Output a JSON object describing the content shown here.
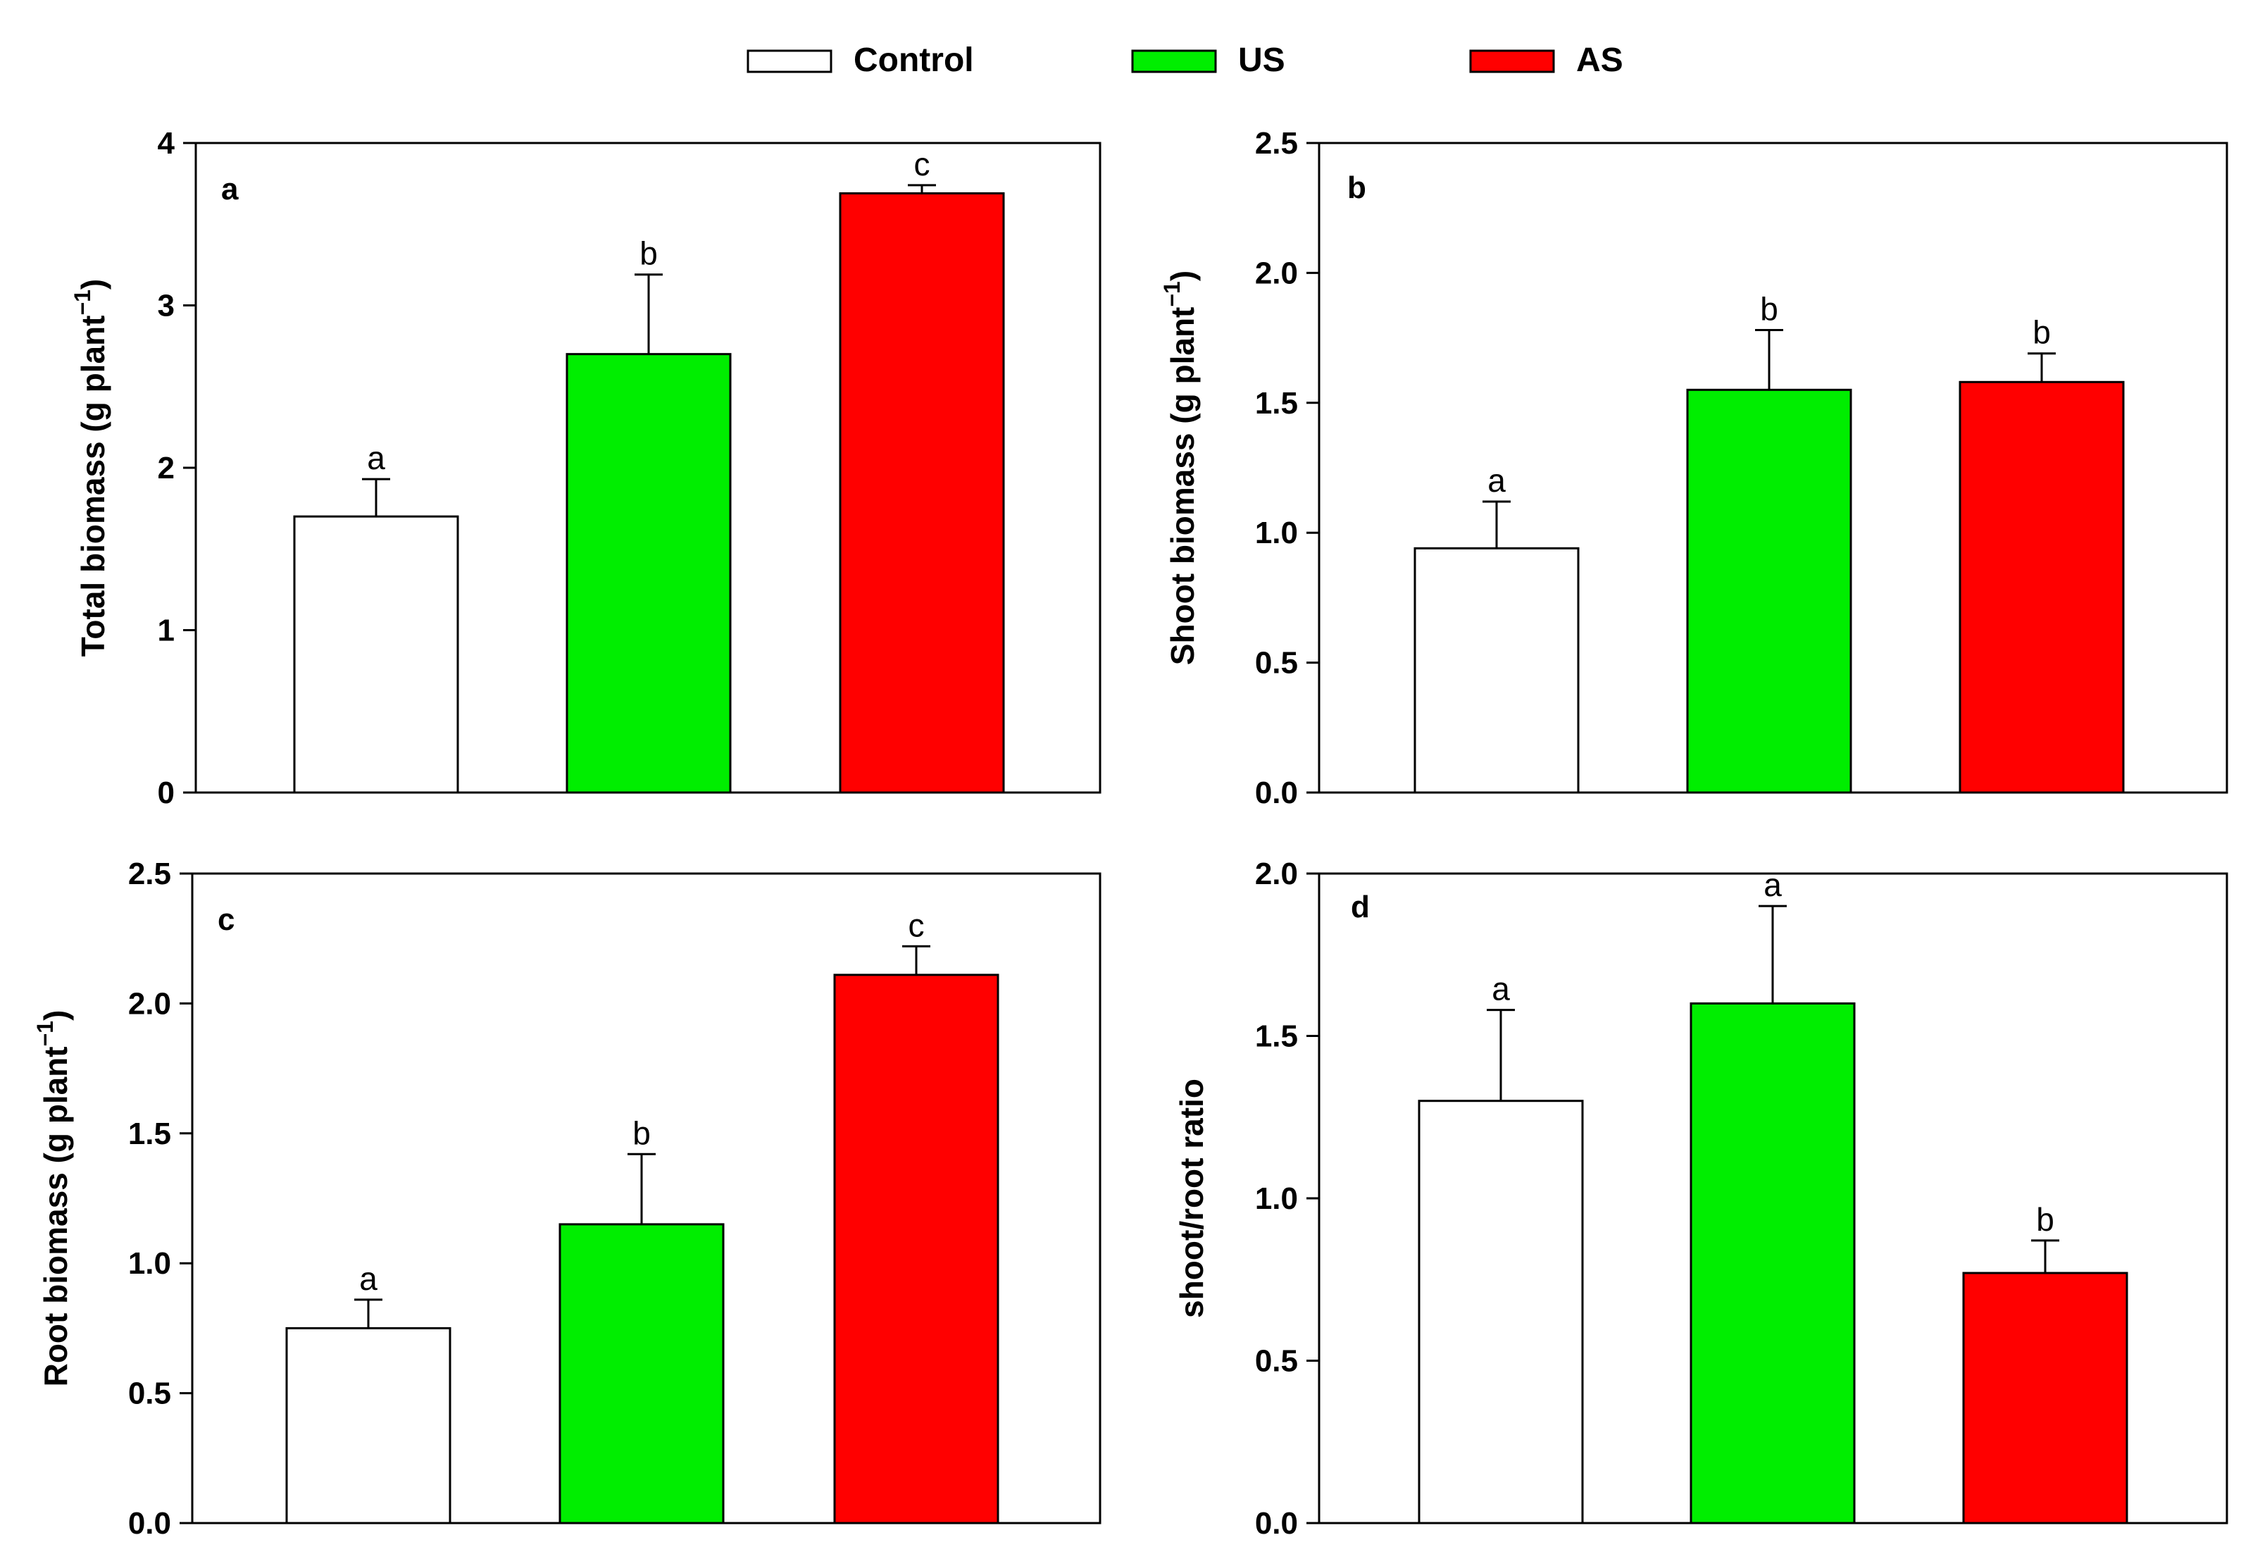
{
  "legend": [
    {
      "label": "Control",
      "color": "#ffffff"
    },
    {
      "label": "US",
      "color": "#00ee00"
    },
    {
      "label": "AS",
      "color": "#ff0000"
    }
  ],
  "chart_data": [
    {
      "type": "bar",
      "panel": "a",
      "categories": [
        "Control",
        "US",
        "AS"
      ],
      "series": [
        {
          "name": "Total biomass",
          "values": [
            1.7,
            2.7,
            3.69
          ],
          "errors": [
            0.23,
            0.49,
            0.05
          ]
        }
      ],
      "significance": [
        "a",
        "b",
        "c"
      ],
      "ylabel": "Total biomass (g plant",
      "ylabel_sup": "−1",
      "ylabel_close": ")",
      "ylim": [
        0,
        4
      ],
      "yticks": [
        "0",
        "1",
        "2",
        "3",
        "4"
      ],
      "ytick_values": [
        0,
        1,
        2,
        3,
        4
      ]
    },
    {
      "type": "bar",
      "panel": "b",
      "categories": [
        "Control",
        "US",
        "AS"
      ],
      "series": [
        {
          "name": "Shoot biomass",
          "values": [
            0.94,
            1.55,
            1.58
          ],
          "errors": [
            0.18,
            0.23,
            0.11
          ]
        }
      ],
      "significance": [
        "a",
        "b",
        "b"
      ],
      "ylabel": "Shoot biomass (g plant",
      "ylabel_sup": "−1",
      "ylabel_close": ")",
      "ylim": [
        0,
        2.5
      ],
      "yticks": [
        "0.0",
        "0.5",
        "1.0",
        "1.5",
        "2.0",
        "2.5"
      ],
      "ytick_values": [
        0,
        0.5,
        1.0,
        1.5,
        2.0,
        2.5
      ]
    },
    {
      "type": "bar",
      "panel": "c",
      "categories": [
        "Control",
        "US",
        "AS"
      ],
      "series": [
        {
          "name": "Root biomass",
          "values": [
            0.75,
            1.15,
            2.11
          ],
          "errors": [
            0.11,
            0.27,
            0.11
          ]
        }
      ],
      "significance": [
        "a",
        "b",
        "c"
      ],
      "ylabel": "Root biomass (g plant",
      "ylabel_sup": "−1",
      "ylabel_close": ")",
      "ylim": [
        0,
        2.5
      ],
      "yticks": [
        "0.0",
        "0.5",
        "1.0",
        "1.5",
        "2.0",
        "2.5"
      ],
      "ytick_values": [
        0,
        0.5,
        1.0,
        1.5,
        2.0,
        2.5
      ]
    },
    {
      "type": "bar",
      "panel": "d",
      "categories": [
        "Control",
        "US",
        "AS"
      ],
      "series": [
        {
          "name": "shoot/root ratio",
          "values": [
            1.3,
            1.6,
            0.77
          ],
          "errors": [
            0.28,
            0.3,
            0.1
          ]
        }
      ],
      "significance": [
        "a",
        "a",
        "b"
      ],
      "ylabel": "shoot/root ratio",
      "ylabel_sup": "",
      "ylabel_close": "",
      "ylim": [
        0,
        2.0
      ],
      "yticks": [
        "0.0",
        "0.5",
        "1.0",
        "1.5",
        "2.0"
      ],
      "ytick_values": [
        0,
        0.5,
        1.0,
        1.5,
        2.0
      ]
    }
  ]
}
